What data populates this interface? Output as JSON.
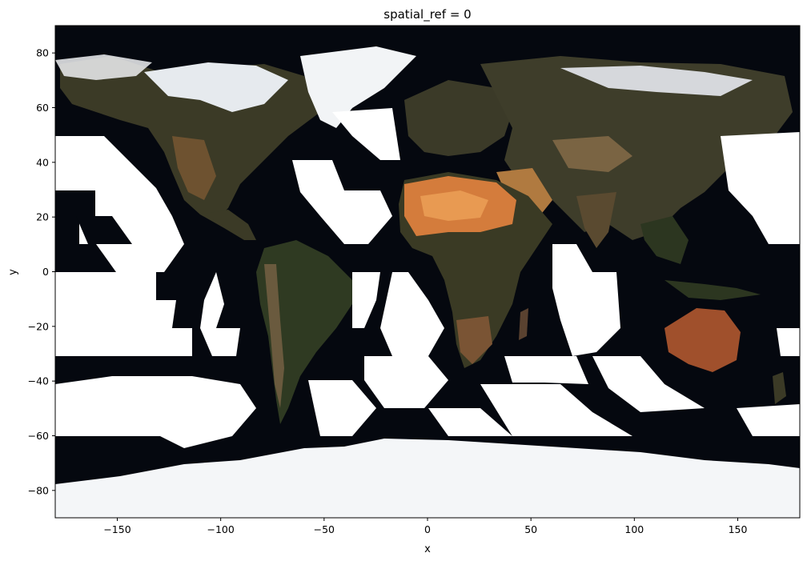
{
  "chart_data": {
    "type": "image",
    "title": "spatial_ref = 0",
    "xlabel": "x",
    "ylabel": "y",
    "xlim": [
      -180,
      180
    ],
    "ylim": [
      -90,
      90
    ],
    "xticks": [
      -150,
      -100,
      -50,
      0,
      50,
      100,
      150
    ],
    "yticks": [
      -80,
      -60,
      -40,
      -20,
      0,
      20,
      40,
      60,
      80
    ],
    "xtick_labels": [
      "−150",
      "−100",
      "−50",
      "0",
      "50",
      "100",
      "150"
    ],
    "ytick_labels": [
      "−80",
      "−60",
      "−40",
      "−20",
      "0",
      "20",
      "40",
      "60",
      "80"
    ],
    "image_description": "world-imagery-mosaic"
  },
  "colors": {
    "ocean": "#05080f",
    "land_dark": "#3a3a28",
    "land_green": "#4a4a2e",
    "desert": "#c8743a",
    "desert_light": "#e8a050",
    "ice": "#ffffff",
    "australia": "#a8502e",
    "axis": "#000000"
  }
}
